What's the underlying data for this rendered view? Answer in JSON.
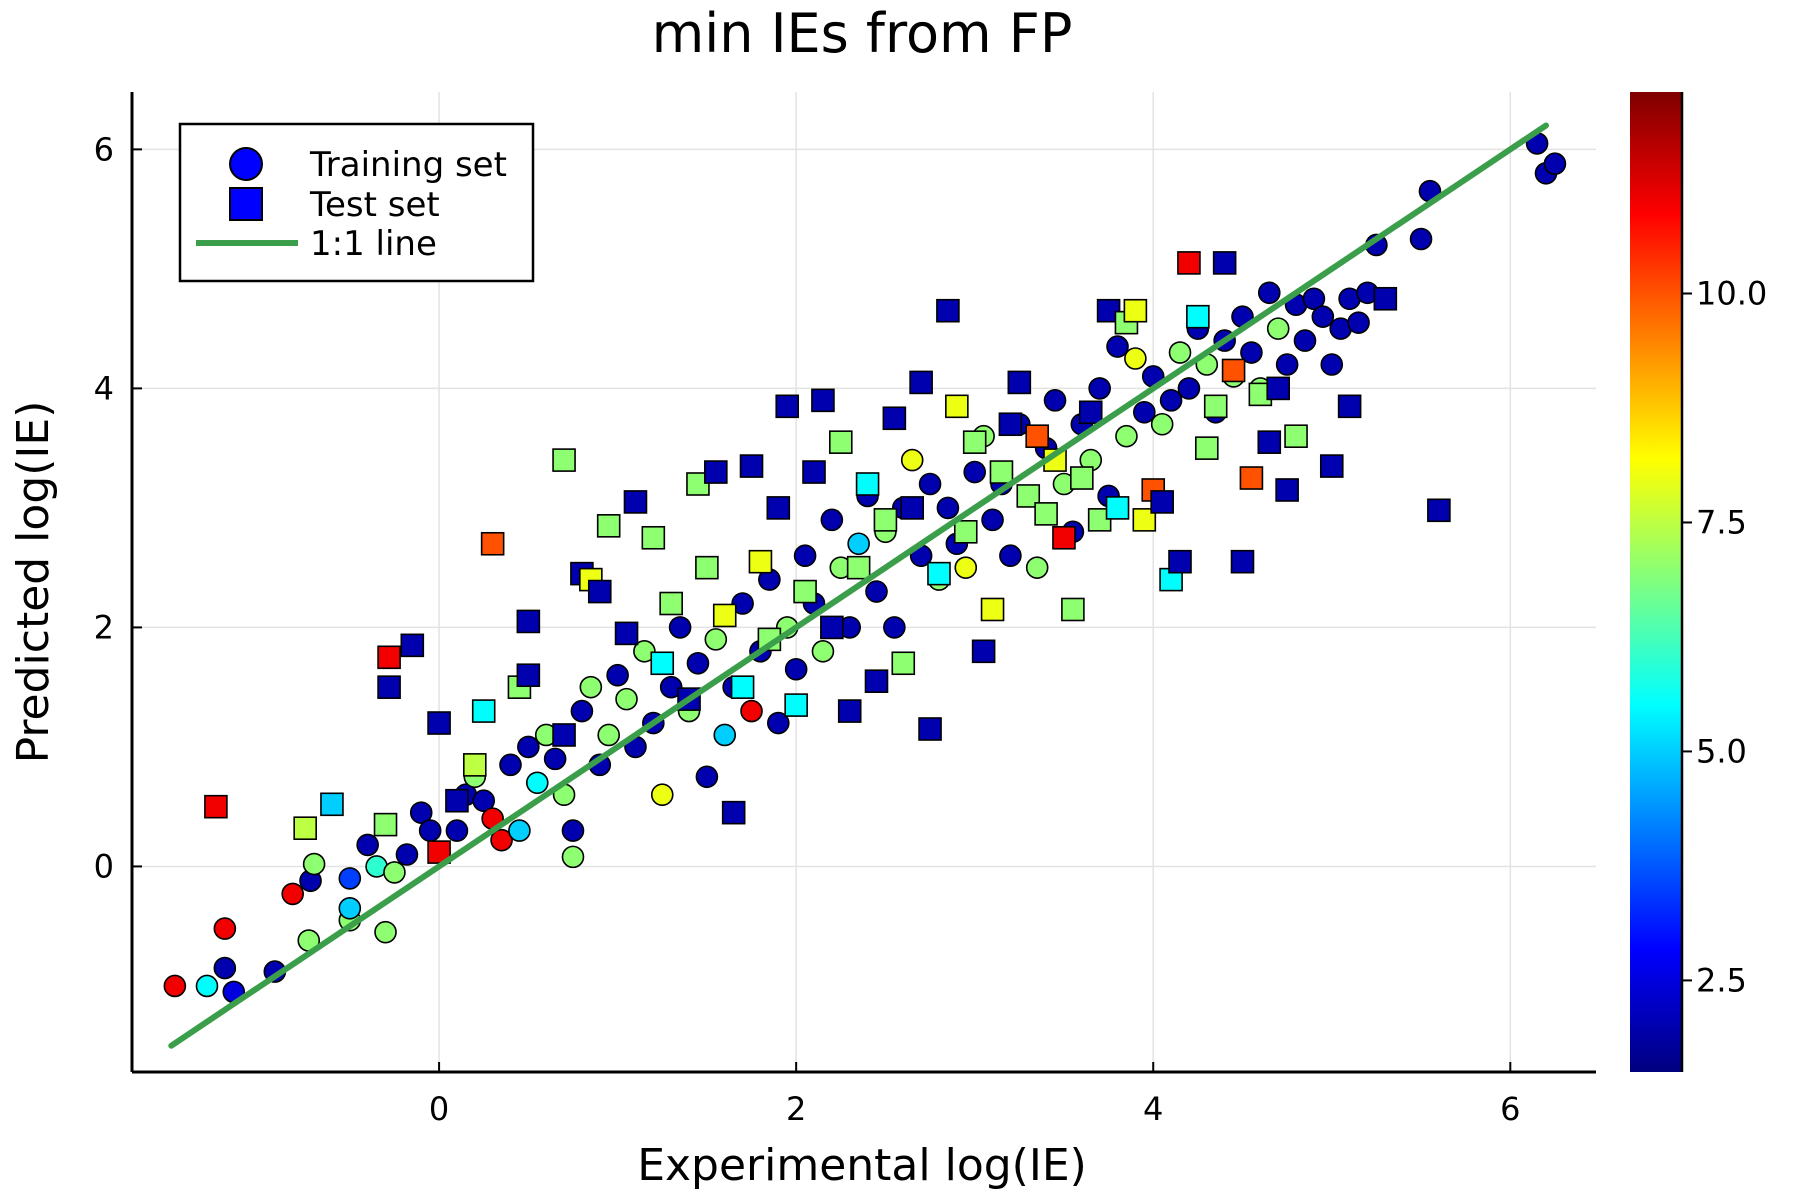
{
  "chart_data": {
    "type": "scatter",
    "title": "min IEs from FP",
    "xlabel": "Experimental log(IE)",
    "ylabel": "Predicted log(IE)",
    "xlim": [
      -1.72,
      6.48
    ],
    "ylim": [
      -1.72,
      6.48
    ],
    "x_ticks": [
      0,
      2,
      4,
      6
    ],
    "y_ticks": [
      0,
      2,
      4,
      6
    ],
    "grid": true,
    "legend_position": "top-left",
    "legend": [
      {
        "label": "Training set",
        "marker": "circle",
        "color": "#0000ff"
      },
      {
        "label": "Test set",
        "marker": "square",
        "color": "#0000ff"
      },
      {
        "label": "1:1 line",
        "marker": "line",
        "color": "#3b9e4a"
      }
    ],
    "colorbar": {
      "colormap": "jet",
      "range": [
        1.5,
        12.2
      ],
      "ticks": [
        2.5,
        5.0,
        7.5,
        10.0
      ],
      "tick_labels": [
        "2.5",
        "5.0",
        "7.5",
        "10.0"
      ]
    },
    "identity_line": {
      "x": [
        -1.5,
        6.2
      ],
      "y": [
        -1.5,
        6.2
      ],
      "color": "#3b9e4a"
    },
    "series": [
      {
        "name": "Training set",
        "marker": "circle",
        "points": [
          [
            -1.48,
            -1.0,
            11.0
          ],
          [
            -1.3,
            -1.0,
            5.5
          ],
          [
            -1.2,
            -0.85,
            2.0
          ],
          [
            -1.15,
            -1.05,
            2.5
          ],
          [
            -1.2,
            -0.52,
            11.0
          ],
          [
            -0.92,
            -0.88,
            2.0
          ],
          [
            -0.82,
            -0.23,
            11.0
          ],
          [
            -0.72,
            -0.12,
            2.0
          ],
          [
            -0.7,
            0.02,
            7.0
          ],
          [
            -0.73,
            -0.62,
            7.0
          ],
          [
            -0.5,
            -0.45,
            7.0
          ],
          [
            -0.5,
            -0.35,
            5.0
          ],
          [
            -0.5,
            -0.1,
            3.5
          ],
          [
            -0.4,
            0.18,
            2.0
          ],
          [
            -0.35,
            0.0,
            6.0
          ],
          [
            -0.3,
            -0.55,
            7.0
          ],
          [
            -0.25,
            -0.05,
            7.0
          ],
          [
            -0.18,
            0.1,
            2.0
          ],
          [
            -0.1,
            0.45,
            2.0
          ],
          [
            -0.05,
            0.3,
            2.0
          ],
          [
            0.1,
            0.3,
            2.0
          ],
          [
            0.15,
            0.6,
            2.0
          ],
          [
            0.2,
            0.75,
            7.0
          ],
          [
            0.25,
            0.55,
            2.0
          ],
          [
            0.3,
            0.4,
            11.0
          ],
          [
            0.35,
            0.22,
            11.0
          ],
          [
            0.4,
            0.85,
            2.0
          ],
          [
            0.45,
            0.3,
            5.0
          ],
          [
            0.5,
            1.0,
            2.0
          ],
          [
            0.55,
            0.7,
            5.5
          ],
          [
            0.6,
            1.1,
            7.0
          ],
          [
            0.65,
            0.9,
            2.0
          ],
          [
            0.7,
            0.6,
            7.0
          ],
          [
            0.75,
            0.3,
            2.0
          ],
          [
            0.75,
            0.08,
            7.0
          ],
          [
            0.8,
            1.3,
            2.0
          ],
          [
            0.85,
            1.5,
            7.0
          ],
          [
            0.9,
            0.85,
            2.0
          ],
          [
            0.95,
            1.1,
            7.0
          ],
          [
            1.0,
            1.6,
            2.0
          ],
          [
            1.05,
            1.4,
            7.0
          ],
          [
            1.1,
            1.0,
            2.0
          ],
          [
            1.15,
            1.8,
            7.0
          ],
          [
            1.2,
            1.2,
            2.0
          ],
          [
            1.25,
            0.6,
            8.0
          ],
          [
            1.3,
            1.5,
            2.0
          ],
          [
            1.35,
            2.0,
            2.0
          ],
          [
            1.4,
            1.3,
            7.0
          ],
          [
            1.45,
            1.7,
            2.0
          ],
          [
            1.5,
            0.75,
            2.0
          ],
          [
            1.55,
            1.9,
            7.0
          ],
          [
            1.6,
            1.1,
            5.0
          ],
          [
            1.65,
            1.5,
            2.0
          ],
          [
            1.7,
            2.2,
            2.0
          ],
          [
            1.75,
            1.3,
            11.0
          ],
          [
            1.8,
            1.8,
            2.0
          ],
          [
            1.85,
            2.4,
            2.0
          ],
          [
            1.9,
            1.2,
            2.0
          ],
          [
            1.95,
            2.0,
            7.0
          ],
          [
            2.0,
            1.65,
            2.0
          ],
          [
            2.05,
            2.6,
            2.0
          ],
          [
            2.1,
            2.2,
            2.0
          ],
          [
            2.15,
            1.8,
            7.0
          ],
          [
            2.2,
            2.9,
            2.0
          ],
          [
            2.25,
            2.5,
            7.0
          ],
          [
            2.3,
            2.0,
            2.0
          ],
          [
            2.35,
            2.7,
            5.0
          ],
          [
            2.4,
            3.1,
            2.0
          ],
          [
            2.45,
            2.3,
            2.0
          ],
          [
            2.5,
            2.8,
            7.0
          ],
          [
            2.55,
            2.0,
            2.0
          ],
          [
            2.6,
            3.0,
            2.0
          ],
          [
            2.65,
            3.4,
            8.0
          ],
          [
            2.7,
            2.6,
            2.0
          ],
          [
            2.75,
            3.2,
            2.0
          ],
          [
            2.8,
            2.4,
            7.0
          ],
          [
            2.85,
            3.0,
            2.0
          ],
          [
            2.9,
            2.7,
            2.0
          ],
          [
            2.95,
            2.5,
            8.0
          ],
          [
            3.0,
            3.3,
            2.0
          ],
          [
            3.05,
            3.6,
            7.0
          ],
          [
            3.1,
            2.9,
            2.0
          ],
          [
            3.15,
            3.2,
            2.0
          ],
          [
            3.2,
            2.6,
            2.0
          ],
          [
            3.25,
            3.7,
            2.0
          ],
          [
            3.3,
            3.1,
            7.0
          ],
          [
            3.35,
            2.5,
            7.0
          ],
          [
            3.4,
            3.5,
            2.0
          ],
          [
            3.45,
            3.9,
            2.0
          ],
          [
            3.5,
            3.2,
            7.0
          ],
          [
            3.55,
            2.8,
            2.0
          ],
          [
            3.6,
            3.7,
            2.0
          ],
          [
            3.65,
            3.4,
            7.0
          ],
          [
            3.7,
            4.0,
            2.0
          ],
          [
            3.75,
            3.1,
            2.0
          ],
          [
            3.8,
            4.35,
            2.0
          ],
          [
            3.85,
            3.6,
            7.0
          ],
          [
            3.9,
            4.25,
            8.0
          ],
          [
            3.95,
            3.8,
            2.0
          ],
          [
            4.0,
            4.1,
            2.0
          ],
          [
            4.05,
            3.7,
            7.0
          ],
          [
            4.1,
            3.9,
            2.0
          ],
          [
            4.15,
            4.3,
            7.0
          ],
          [
            4.2,
            4.0,
            2.0
          ],
          [
            4.25,
            4.5,
            2.0
          ],
          [
            4.3,
            4.2,
            7.0
          ],
          [
            4.35,
            3.8,
            2.0
          ],
          [
            4.4,
            4.4,
            2.0
          ],
          [
            4.45,
            4.1,
            7.0
          ],
          [
            4.5,
            4.6,
            2.0
          ],
          [
            4.55,
            4.3,
            2.0
          ],
          [
            4.6,
            4.0,
            7.0
          ],
          [
            4.65,
            4.8,
            2.0
          ],
          [
            4.7,
            4.5,
            7.0
          ],
          [
            4.75,
            4.2,
            2.0
          ],
          [
            4.8,
            4.7,
            2.0
          ],
          [
            4.85,
            4.4,
            2.0
          ],
          [
            4.9,
            4.75,
            2.0
          ],
          [
            4.95,
            4.6,
            2.0
          ],
          [
            5.0,
            4.2,
            2.0
          ],
          [
            5.05,
            4.5,
            2.0
          ],
          [
            5.1,
            4.75,
            2.0
          ],
          [
            5.15,
            4.55,
            2.0
          ],
          [
            5.2,
            4.8,
            2.0
          ],
          [
            5.25,
            5.2,
            2.0
          ],
          [
            5.5,
            5.25,
            2.0
          ],
          [
            5.55,
            5.65,
            2.0
          ],
          [
            6.15,
            6.05,
            2.0
          ],
          [
            6.2,
            5.8,
            2.0
          ],
          [
            6.25,
            5.88,
            2.0
          ]
        ]
      },
      {
        "name": "Test set",
        "marker": "square",
        "points": [
          [
            -1.25,
            0.5,
            11.0
          ],
          [
            -0.75,
            0.32,
            7.5
          ],
          [
            -0.6,
            0.52,
            5.0
          ],
          [
            -0.3,
            0.35,
            7.0
          ],
          [
            -0.28,
            1.5,
            2.0
          ],
          [
            -0.28,
            1.75,
            11.0
          ],
          [
            -0.15,
            1.85,
            2.0
          ],
          [
            0.0,
            0.12,
            11.0
          ],
          [
            0.0,
            1.2,
            2.0
          ],
          [
            0.1,
            0.55,
            2.0
          ],
          [
            0.2,
            0.85,
            7.5
          ],
          [
            0.25,
            1.3,
            5.5
          ],
          [
            0.3,
            2.7,
            10.0
          ],
          [
            0.45,
            1.5,
            7.0
          ],
          [
            0.5,
            1.6,
            2.0
          ],
          [
            0.5,
            2.05,
            2.0
          ],
          [
            0.7,
            1.1,
            2.0
          ],
          [
            0.7,
            3.4,
            7.0
          ],
          [
            0.8,
            2.45,
            2.0
          ],
          [
            0.85,
            2.4,
            8.0
          ],
          [
            0.9,
            2.3,
            2.0
          ],
          [
            0.95,
            2.85,
            7.0
          ],
          [
            1.05,
            1.95,
            2.0
          ],
          [
            1.1,
            3.05,
            2.0
          ],
          [
            1.2,
            2.75,
            7.0
          ],
          [
            1.25,
            1.7,
            5.5
          ],
          [
            1.3,
            2.2,
            7.0
          ],
          [
            1.4,
            1.4,
            2.0
          ],
          [
            1.45,
            3.2,
            7.0
          ],
          [
            1.5,
            2.5,
            7.0
          ],
          [
            1.55,
            3.3,
            2.0
          ],
          [
            1.6,
            2.1,
            8.0
          ],
          [
            1.65,
            0.45,
            2.0
          ],
          [
            1.7,
            1.5,
            5.5
          ],
          [
            1.75,
            3.35,
            2.0
          ],
          [
            1.8,
            2.55,
            8.0
          ],
          [
            1.85,
            1.9,
            7.0
          ],
          [
            1.9,
            3.0,
            2.0
          ],
          [
            1.95,
            3.85,
            2.0
          ],
          [
            2.0,
            1.35,
            5.5
          ],
          [
            2.05,
            2.3,
            7.0
          ],
          [
            2.1,
            3.3,
            2.0
          ],
          [
            2.15,
            3.9,
            2.0
          ],
          [
            2.2,
            2.0,
            2.0
          ],
          [
            2.25,
            3.55,
            7.0
          ],
          [
            2.3,
            1.3,
            2.0
          ],
          [
            2.35,
            2.5,
            7.0
          ],
          [
            2.4,
            3.2,
            5.5
          ],
          [
            2.45,
            1.55,
            2.0
          ],
          [
            2.5,
            2.9,
            7.0
          ],
          [
            2.55,
            3.75,
            2.0
          ],
          [
            2.6,
            1.7,
            7.0
          ],
          [
            2.65,
            3.0,
            2.0
          ],
          [
            2.7,
            4.05,
            2.0
          ],
          [
            2.75,
            1.15,
            2.0
          ],
          [
            2.8,
            2.45,
            5.5
          ],
          [
            2.85,
            4.65,
            2.0
          ],
          [
            2.9,
            3.85,
            8.0
          ],
          [
            2.95,
            2.8,
            7.0
          ],
          [
            3.0,
            3.55,
            7.0
          ],
          [
            3.05,
            1.8,
            2.0
          ],
          [
            3.1,
            2.15,
            8.0
          ],
          [
            3.15,
            3.3,
            7.0
          ],
          [
            3.2,
            3.7,
            2.0
          ],
          [
            3.25,
            4.05,
            2.0
          ],
          [
            3.3,
            3.1,
            7.0
          ],
          [
            3.35,
            3.6,
            10.0
          ],
          [
            3.4,
            2.95,
            7.0
          ],
          [
            3.45,
            3.4,
            8.0
          ],
          [
            3.5,
            2.75,
            11.0
          ],
          [
            3.55,
            2.15,
            7.0
          ],
          [
            3.6,
            3.25,
            7.0
          ],
          [
            3.65,
            3.8,
            2.0
          ],
          [
            3.7,
            2.9,
            7.0
          ],
          [
            3.75,
            4.65,
            2.0
          ],
          [
            3.8,
            3.0,
            5.5
          ],
          [
            3.85,
            4.55,
            7.0
          ],
          [
            3.9,
            4.65,
            8.0
          ],
          [
            3.95,
            2.9,
            8.0
          ],
          [
            4.0,
            3.15,
            10.0
          ],
          [
            4.05,
            3.05,
            2.0
          ],
          [
            4.1,
            2.4,
            5.5
          ],
          [
            4.15,
            2.55,
            2.0
          ],
          [
            4.2,
            5.05,
            11.0
          ],
          [
            4.25,
            4.6,
            5.5
          ],
          [
            4.3,
            3.5,
            7.0
          ],
          [
            4.35,
            3.85,
            7.0
          ],
          [
            4.4,
            5.05,
            2.0
          ],
          [
            4.45,
            4.15,
            10.0
          ],
          [
            4.5,
            2.55,
            2.0
          ],
          [
            4.55,
            3.25,
            10.0
          ],
          [
            4.6,
            3.95,
            7.0
          ],
          [
            4.65,
            3.55,
            2.0
          ],
          [
            4.7,
            4.0,
            2.0
          ],
          [
            4.75,
            3.15,
            2.0
          ],
          [
            4.8,
            3.6,
            7.0
          ],
          [
            5.0,
            3.35,
            2.0
          ],
          [
            5.1,
            3.85,
            2.0
          ],
          [
            5.3,
            4.75,
            2.0
          ],
          [
            5.6,
            2.98,
            2.0
          ]
        ]
      }
    ]
  }
}
